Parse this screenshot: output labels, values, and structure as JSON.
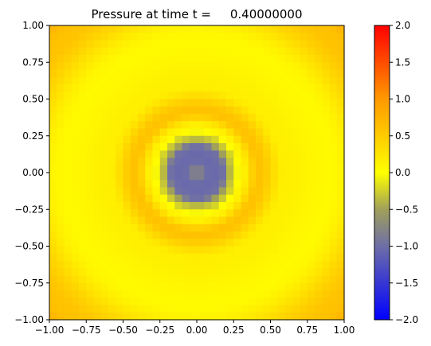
{
  "chart_data": {
    "type": "heatmap",
    "title": "Pressure at time t =     0.40000000",
    "xlabel": "",
    "ylabel": "",
    "xlim": [
      -1.0,
      1.0
    ],
    "ylim": [
      -1.0,
      1.0
    ],
    "x_ticks": [
      "−1.00",
      "−0.75",
      "−0.50",
      "−0.25",
      "0.00",
      "0.25",
      "0.50",
      "0.75",
      "1.00"
    ],
    "y_ticks": [
      "−1.00",
      "−0.75",
      "−0.50",
      "−0.25",
      "0.00",
      "0.25",
      "0.50",
      "0.75",
      "1.00"
    ],
    "x_tick_values": [
      -1.0,
      -0.75,
      -0.5,
      -0.25,
      0.0,
      0.25,
      0.5,
      0.75,
      1.0
    ],
    "y_tick_values": [
      -1.0,
      -0.75,
      -0.5,
      -0.25,
      0.0,
      0.25,
      0.5,
      0.75,
      1.0
    ],
    "grid": "off",
    "grid_resolution": [
      40,
      40
    ],
    "colorbar": {
      "min": -2.0,
      "max": 2.0,
      "ticks": [
        "−2.0",
        "−1.5",
        "−1.0",
        "−0.5",
        "0.0",
        "0.5",
        "1.0",
        "1.5",
        "2.0"
      ],
      "tick_values": [
        -2.0,
        -1.5,
        -1.0,
        -0.5,
        0.0,
        0.5,
        1.0,
        1.5,
        2.0
      ],
      "colormap": [
        {
          "value": -2.0,
          "color": "#0000ff"
        },
        {
          "value": -1.0,
          "color": "#6e6ea8"
        },
        {
          "value": -0.5,
          "color": "#a0a05a"
        },
        {
          "value": 0.0,
          "color": "#ffff00"
        },
        {
          "value": 1.0,
          "color": "#ff9900"
        },
        {
          "value": 2.0,
          "color": "#ff0000"
        }
      ]
    },
    "field_description": {
      "center_value": -0.75,
      "ring_features": [
        {
          "radius": 0.0,
          "value": -0.75
        },
        {
          "radius": 0.1,
          "value": -1.05
        },
        {
          "radius": 0.17,
          "value": -1.0
        },
        {
          "radius": 0.24,
          "value": -0.3
        },
        {
          "radius": 0.3,
          "value": 0.1
        },
        {
          "radius": 0.42,
          "value": 0.6
        },
        {
          "radius": 0.6,
          "value": 0.15
        },
        {
          "radius": 0.9,
          "value": 0.05
        },
        {
          "radius": 1.3,
          "value": 0.6
        },
        {
          "radius": 1.45,
          "value": 0.8
        }
      ]
    }
  }
}
